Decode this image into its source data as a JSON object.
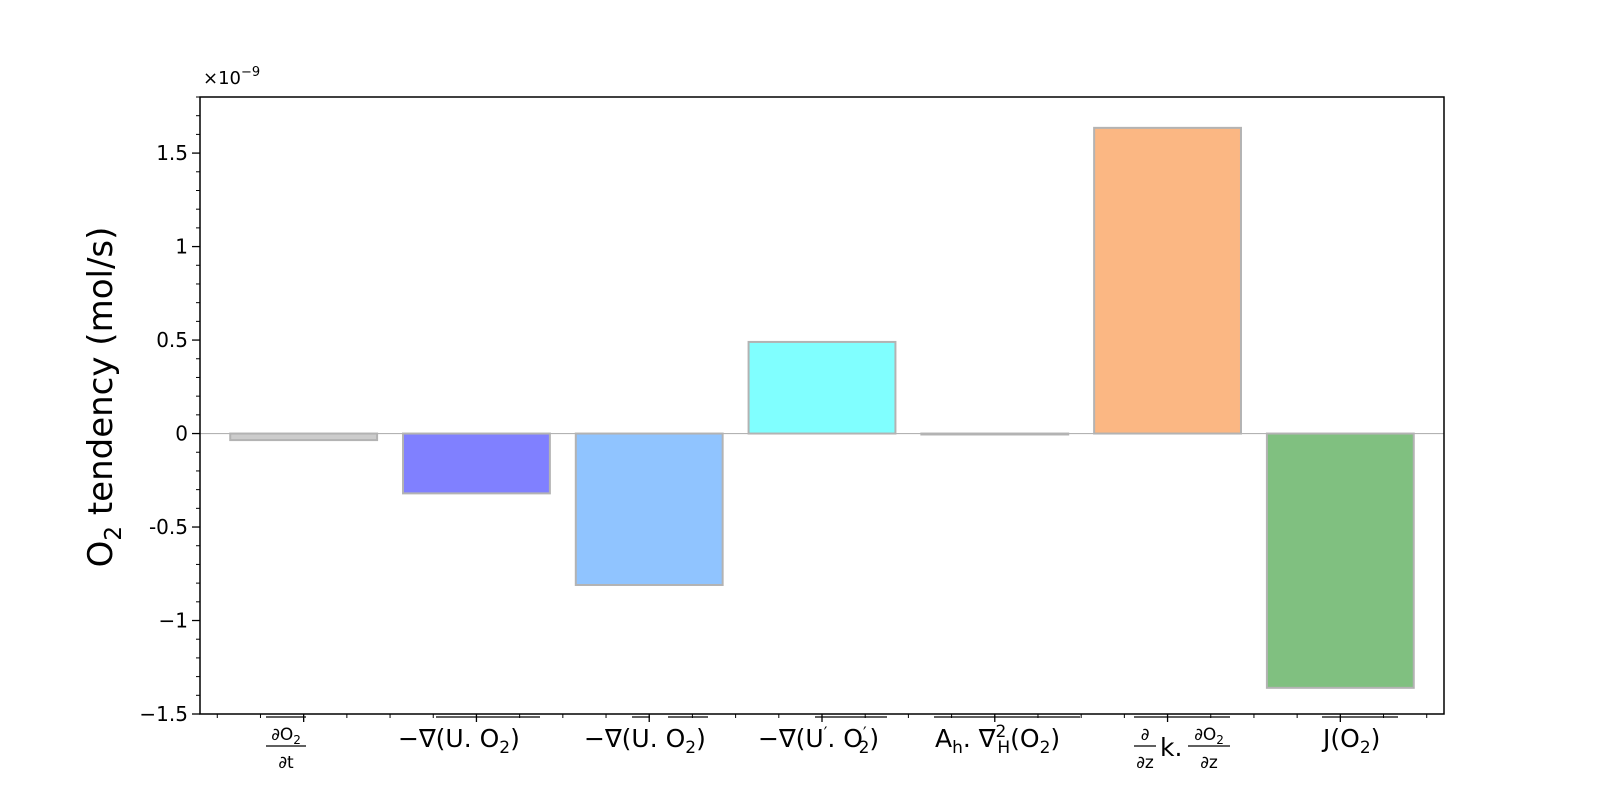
{
  "chart_data": {
    "type": "bar",
    "categories": [
      "∂O₂/∂t",
      "−∇(U.O₂)",
      "−∇(Ū.Ō₂)",
      "−∇(U′.O₂′)",
      "Aₕ.∇²ₕ(O₂)",
      "∂/∂z k.∂O₂/∂z",
      "J(O₂)"
    ],
    "values": [
      -3.5e-11,
      -3.2e-10,
      -8.1e-10,
      4.9e-10,
      -5e-12,
      1.635e-09,
      -1.36e-09
    ],
    "colors": [
      "#cccccc",
      "#8080ff",
      "#90c4ff",
      "#80ffff",
      "#cccccc",
      "#fbb783",
      "#80c080"
    ],
    "edge_color": "#b3b3b3",
    "ylabel": "O2 tendency (mol/s)",
    "ylabel_parts": {
      "base": "O",
      "sub": "2",
      "rest": " tendency (mol/s)"
    },
    "offset_text": {
      "base": "×10",
      "exp": "−9"
    },
    "scale": 1e-09,
    "ylim": [
      -1.5,
      1.8
    ],
    "yticks": [
      -1.5,
      -1,
      -0.5,
      0,
      0.5,
      1,
      1.5
    ],
    "ytick_labels": [
      "−1.5",
      "−1",
      "-0.5",
      "0",
      "0.5",
      "1",
      "1.5"
    ],
    "grid": false,
    "zero_line": true
  }
}
